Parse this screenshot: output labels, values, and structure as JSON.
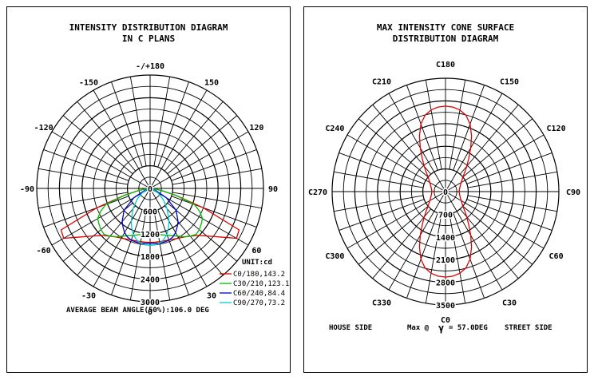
{
  "chart_data": [
    {
      "type": "polar",
      "title_lines": [
        "INTENSITY DISTRIBUTION DIAGRAM",
        "IN C PLANS"
      ],
      "angle_labels": [
        {
          "angle": 180,
          "text": "-/+180"
        },
        {
          "angle": -150,
          "text": "-150"
        },
        {
          "angle": 150,
          "text": "150"
        },
        {
          "angle": -120,
          "text": "-120"
        },
        {
          "angle": 120,
          "text": "120"
        },
        {
          "angle": -90,
          "text": "-90"
        },
        {
          "angle": 90,
          "text": "90"
        },
        {
          "angle": -60,
          "text": "-60"
        },
        {
          "angle": 60,
          "text": "60"
        },
        {
          "angle": -30,
          "text": "-30"
        },
        {
          "angle": 30,
          "text": "30"
        },
        {
          "angle": 0,
          "text": "0"
        }
      ],
      "radial_max": 3000,
      "radial_ticks": [
        "0",
        "600",
        "1200",
        "1800",
        "2400",
        "3000"
      ],
      "unit_label": "UNIT:cd",
      "footer": "AVERAGE BEAM ANGLE(50%):106.0 DEG",
      "series": [
        {
          "name": "C0/180,143.2",
          "color": "#dd0000",
          "angles": [
            -90,
            -85,
            -80,
            -75,
            -70,
            -65,
            -60,
            -55,
            -50,
            -45,
            -40,
            -35,
            -30,
            -25,
            -20,
            -15,
            -10,
            -5,
            0,
            5,
            10,
            15,
            20,
            25,
            30,
            35,
            40,
            45,
            50,
            55,
            60,
            65,
            70,
            75,
            80,
            85,
            90
          ],
          "values": [
            0,
            100,
            300,
            700,
            1500,
            2600,
            2640,
            2240,
            1960,
            1760,
            1650,
            1570,
            1520,
            1480,
            1450,
            1440,
            1430,
            1430,
            1430,
            1430,
            1430,
            1440,
            1450,
            1480,
            1520,
            1570,
            1650,
            1760,
            1960,
            2240,
            2640,
            2600,
            1500,
            700,
            300,
            100,
            0
          ]
        },
        {
          "name": "C30/210,123.1",
          "color": "#00bb00",
          "angles": [
            -90,
            -85,
            -80,
            -75,
            -70,
            -65,
            -60,
            -55,
            -50,
            -45,
            -40,
            -35,
            -30,
            -25,
            -20,
            -15,
            -10,
            -5,
            0,
            5,
            10,
            15,
            20,
            25,
            30,
            35,
            40,
            45,
            50,
            55,
            60,
            65,
            70,
            75,
            80,
            85,
            90
          ],
          "values": [
            0,
            100,
            300,
            700,
            1250,
            1450,
            1600,
            1650,
            1700,
            1720,
            1650,
            1560,
            1460,
            1380,
            1320,
            1270,
            1240,
            1230,
            1230,
            1230,
            1240,
            1270,
            1320,
            1380,
            1460,
            1560,
            1650,
            1720,
            1700,
            1650,
            1600,
            1450,
            1250,
            700,
            300,
            100,
            0
          ]
        },
        {
          "name": "C60/240,84.4",
          "color": "#0000cc",
          "angles": [
            -90,
            -80,
            -70,
            -60,
            -50,
            -40,
            -35,
            -30,
            -25,
            -20,
            -15,
            -10,
            -5,
            0,
            5,
            10,
            15,
            20,
            25,
            30,
            35,
            40,
            50,
            60,
            70,
            80,
            90
          ],
          "values": [
            0,
            40,
            150,
            500,
            900,
            1150,
            1250,
            1350,
            1420,
            1460,
            1470,
            1470,
            1460,
            1450,
            1460,
            1470,
            1470,
            1460,
            1420,
            1350,
            1250,
            1150,
            900,
            500,
            150,
            40,
            0
          ]
        },
        {
          "name": "C90/270,73.2",
          "color": "#00cccc",
          "angles": [
            -90,
            -80,
            -70,
            -60,
            -50,
            -40,
            -30,
            -25,
            -20,
            -15,
            -10,
            -5,
            0,
            5,
            10,
            15,
            20,
            25,
            30,
            40,
            50,
            60,
            70,
            80,
            90
          ],
          "values": [
            0,
            40,
            100,
            250,
            450,
            700,
            1000,
            1150,
            1300,
            1400,
            1470,
            1500,
            1510,
            1500,
            1470,
            1400,
            1300,
            1150,
            1000,
            700,
            450,
            250,
            100,
            40,
            0
          ]
        }
      ]
    },
    {
      "type": "polar",
      "title_lines": [
        "MAX INTENSITY CONE SURFACE",
        "DISTRIBUTION DIAGRAM"
      ],
      "angle_labels": [
        {
          "angle": 180,
          "text": "C180"
        },
        {
          "angle": 150,
          "text": "C150"
        },
        {
          "angle": 120,
          "text": "C120"
        },
        {
          "angle": 90,
          "text": "C90"
        },
        {
          "angle": 60,
          "text": "C60"
        },
        {
          "angle": 30,
          "text": "C30"
        },
        {
          "angle": 0,
          "text": "C0"
        },
        {
          "angle": -30,
          "text": "C330"
        },
        {
          "angle": -60,
          "text": "C300"
        },
        {
          "angle": -90,
          "text": "C270"
        },
        {
          "angle": -120,
          "text": "C240"
        },
        {
          "angle": -150,
          "text": "C210"
        }
      ],
      "radial_max": 3500,
      "radial_ticks": [
        "0",
        "700",
        "1400",
        "2100",
        "2800",
        "3500"
      ],
      "footer_left": "HOUSE SIDE",
      "footer_mid": "Max @",
      "footer_gamma": "γ",
      "footer_value": "= 57.0DEG",
      "footer_right": "STREET SIDE",
      "series": [
        {
          "name": "Max intensity cone",
          "color": "#dd0000",
          "angles": [
            0,
            5,
            10,
            15,
            20,
            25,
            30,
            35,
            40,
            45,
            50,
            55,
            60,
            70,
            80,
            90,
            100,
            110,
            120,
            125,
            130,
            135,
            140,
            145,
            150,
            155,
            160,
            165,
            170,
            175,
            180,
            185,
            190,
            195,
            200,
            205,
            210,
            215,
            220,
            225,
            230,
            235,
            240,
            250,
            260,
            270,
            280,
            290,
            300,
            305,
            310,
            315,
            320,
            325,
            330,
            335,
            340,
            345,
            350,
            355,
            360
          ],
          "values": [
            2640,
            2620,
            2560,
            2440,
            2220,
            1900,
            1560,
            1250,
            1020,
            840,
            700,
            620,
            560,
            480,
            440,
            420,
            440,
            480,
            560,
            620,
            700,
            840,
            1020,
            1250,
            1560,
            1900,
            2220,
            2440,
            2560,
            2620,
            2640,
            2620,
            2560,
            2440,
            2220,
            1900,
            1560,
            1250,
            1020,
            840,
            700,
            620,
            560,
            480,
            440,
            420,
            440,
            480,
            560,
            620,
            700,
            840,
            1020,
            1250,
            1560,
            1900,
            2220,
            2440,
            2560,
            2620,
            2640
          ]
        }
      ]
    }
  ]
}
